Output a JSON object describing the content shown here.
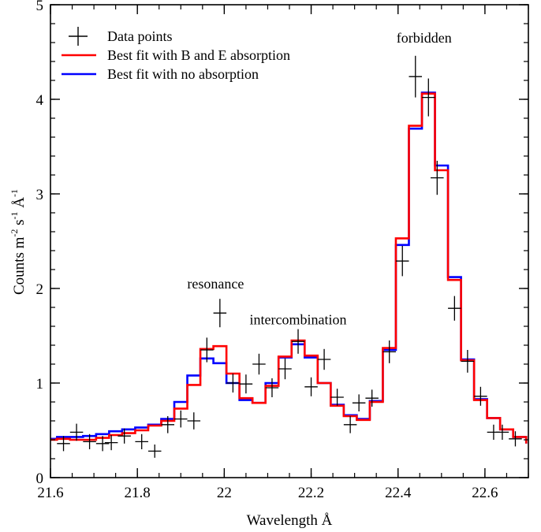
{
  "chart_data": {
    "type": "step-line-with-errorbars",
    "xlabel": "Wavelength Å",
    "ylabel_main": "Counts m",
    "ylabel_exp1": "-2",
    "ylabel_mid": " s",
    "ylabel_exp2": "-1",
    "ylabel_end": " Å",
    "ylabel_exp3": "-1",
    "xlim": [
      21.6,
      22.7
    ],
    "ylim": [
      0,
      5
    ],
    "xticks": [
      21.6,
      21.8,
      22.0,
      22.2,
      22.4,
      22.6
    ],
    "xtick_labels": [
      "21.6",
      "21.8",
      "22",
      "22.2",
      "22.4",
      "22.6"
    ],
    "yticks": [
      0,
      1,
      2,
      3,
      4,
      5
    ],
    "ytick_labels": [
      "0",
      "1",
      "2",
      "3",
      "4",
      "5"
    ],
    "grid": false,
    "legend_position": "top-left",
    "bin_edges": [
      21.585,
      21.615,
      21.645,
      21.675,
      21.705,
      21.735,
      21.765,
      21.795,
      21.825,
      21.855,
      21.885,
      21.915,
      21.945,
      21.975,
      22.005,
      22.035,
      22.065,
      22.095,
      22.125,
      22.155,
      22.185,
      22.215,
      22.245,
      22.275,
      22.305,
      22.335,
      22.365,
      22.395,
      22.425,
      22.455,
      22.485,
      22.515,
      22.545,
      22.575,
      22.605,
      22.635,
      22.665,
      22.695
    ],
    "series": [
      {
        "name": "Data points",
        "style": "errorbar",
        "color": "#000000",
        "x": [
          21.63,
          21.66,
          21.69,
          21.72,
          21.74,
          21.77,
          21.81,
          21.84,
          21.87,
          21.9,
          21.93,
          21.96,
          21.99,
          22.02,
          22.05,
          22.08,
          22.11,
          22.14,
          22.17,
          22.2,
          22.23,
          22.26,
          22.29,
          22.31,
          22.34,
          22.38,
          22.41,
          22.44,
          22.47,
          22.49,
          22.53,
          22.56,
          22.59,
          22.62,
          22.64,
          22.67
        ],
        "y": [
          0.36,
          0.48,
          0.38,
          0.36,
          0.37,
          0.44,
          0.38,
          0.28,
          0.56,
          0.62,
          0.6,
          1.35,
          1.74,
          1.0,
          0.99,
          1.2,
          0.95,
          1.15,
          1.44,
          0.96,
          1.25,
          0.85,
          0.56,
          0.79,
          0.84,
          1.33,
          2.29,
          4.24,
          4.02,
          3.17,
          1.79,
          1.23,
          0.86,
          0.48,
          0.48,
          0.41
        ],
        "xerr": 0.015,
        "yerr": [
          0.08,
          0.09,
          0.08,
          0.08,
          0.08,
          0.08,
          0.08,
          0.07,
          0.09,
          0.09,
          0.09,
          0.13,
          0.15,
          0.1,
          0.1,
          0.11,
          0.1,
          0.11,
          0.13,
          0.1,
          0.11,
          0.09,
          0.09,
          0.09,
          0.09,
          0.12,
          0.16,
          0.22,
          0.2,
          0.18,
          0.13,
          0.12,
          0.1,
          0.08,
          0.08,
          0.08
        ]
      },
      {
        "name": "Best fit with B and E absorption",
        "style": "step",
        "color": "#ff0000",
        "values": [
          0.4,
          0.41,
          0.4,
          0.4,
          0.42,
          0.45,
          0.47,
          0.5,
          0.55,
          0.6,
          0.73,
          0.98,
          1.36,
          1.39,
          1.1,
          0.84,
          0.79,
          0.97,
          1.28,
          1.45,
          1.29,
          1.0,
          0.76,
          0.65,
          0.61,
          0.8,
          1.37,
          2.53,
          3.72,
          4.06,
          3.25,
          2.09,
          1.24,
          0.82,
          0.63,
          0.51,
          0.43,
          0.36
        ]
      },
      {
        "name": "Best fit with no absorption",
        "style": "step",
        "color": "#0000ff",
        "values": [
          0.41,
          0.43,
          0.43,
          0.44,
          0.46,
          0.49,
          0.51,
          0.53,
          0.56,
          0.62,
          0.8,
          1.08,
          1.26,
          1.21,
          1.0,
          0.82,
          0.79,
          1.0,
          1.27,
          1.41,
          1.27,
          1.0,
          0.77,
          0.66,
          0.62,
          0.81,
          1.35,
          2.46,
          3.69,
          4.07,
          3.3,
          2.12,
          1.25,
          0.83,
          0.63,
          0.51,
          0.43,
          0.36
        ]
      }
    ],
    "annotations": [
      {
        "text": "resonance",
        "x": 21.98,
        "y": 2.0
      },
      {
        "text": "intercombination",
        "x": 22.17,
        "y": 1.62
      },
      {
        "text": "forbidden",
        "x": 22.46,
        "y": 4.6
      }
    ]
  }
}
